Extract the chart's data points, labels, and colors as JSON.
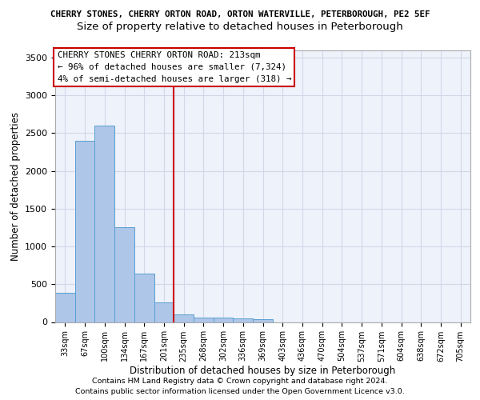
{
  "title_line1": "CHERRY STONES, CHERRY ORTON ROAD, ORTON WATERVILLE, PETERBOROUGH, PE2 5EF",
  "title_line2": "Size of property relative to detached houses in Peterborough",
  "xlabel": "Distribution of detached houses by size in Peterborough",
  "ylabel": "Number of detached properties",
  "footer_line1": "Contains HM Land Registry data © Crown copyright and database right 2024.",
  "footer_line2": "Contains public sector information licensed under the Open Government Licence v3.0.",
  "bin_labels": [
    "33sqm",
    "67sqm",
    "100sqm",
    "134sqm",
    "167sqm",
    "201sqm",
    "235sqm",
    "268sqm",
    "302sqm",
    "336sqm",
    "369sqm",
    "403sqm",
    "436sqm",
    "470sqm",
    "504sqm",
    "537sqm",
    "571sqm",
    "604sqm",
    "638sqm",
    "672sqm",
    "705sqm"
  ],
  "bar_values": [
    390,
    2400,
    2600,
    1250,
    645,
    255,
    100,
    62,
    62,
    52,
    35,
    0,
    0,
    0,
    0,
    0,
    0,
    0,
    0,
    0,
    0
  ],
  "bar_color": "#aec6e8",
  "bar_edge_color": "#5a9fd4",
  "grid_color": "#d0d8e8",
  "background_color": "#eef2fa",
  "vline_x": 5.5,
  "vline_color": "#cc0000",
  "annotation_text": "CHERRY STONES CHERRY ORTON ROAD: 213sqm\n← 96% of detached houses are smaller (7,324)\n4% of semi-detached houses are larger (318) →",
  "annotation_box_color": "#cc0000",
  "ylim": [
    0,
    3600
  ],
  "yticks": [
    0,
    500,
    1000,
    1500,
    2000,
    2500,
    3000,
    3500
  ],
  "title1_fontsize": 7.8,
  "title2_fontsize": 9.5,
  "footer_fontsize": 6.8
}
